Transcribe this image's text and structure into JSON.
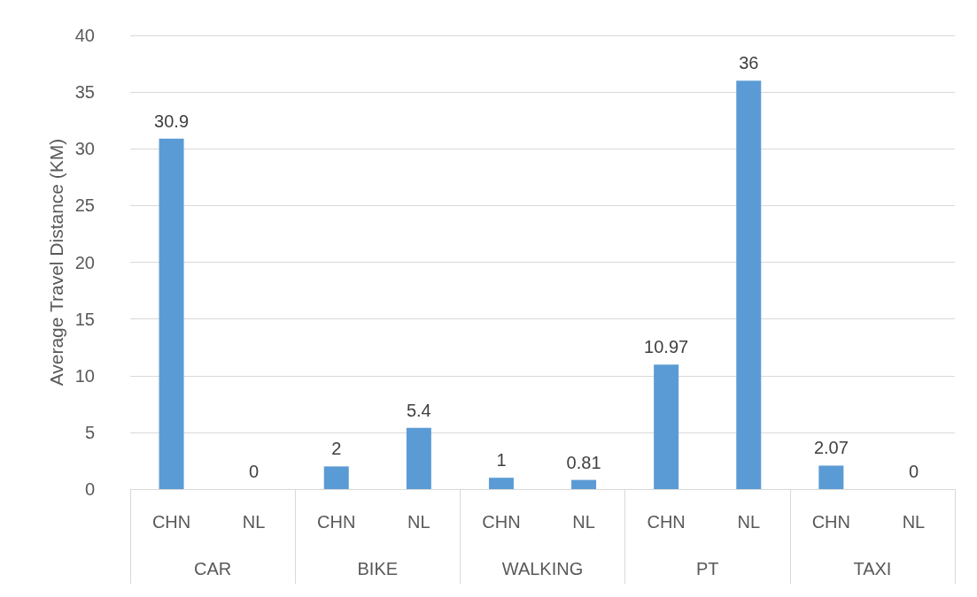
{
  "chart_data": {
    "type": "bar",
    "ylabel": "Average Travel Distance (KM)",
    "categories": [
      "CHN",
      "NL",
      "CHN",
      "NL",
      "CHN",
      "NL",
      "CHN",
      "NL",
      "CHN",
      "NL"
    ],
    "annotations": [
      "CAR",
      "BIKE",
      "WALKING",
      "PT",
      "TAXI"
    ],
    "values": [
      30.9,
      0,
      2,
      5.4,
      1,
      0.81,
      10.97,
      36,
      2.07,
      0
    ],
    "color": "#5b9bd5",
    "ylim": [
      0,
      40
    ],
    "yticks": [
      0,
      5,
      10,
      15,
      20,
      25,
      30,
      35,
      40
    ],
    "grid": "y",
    "data_labels": true
  }
}
